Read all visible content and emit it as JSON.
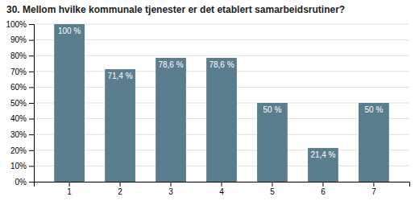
{
  "chart_data": {
    "type": "bar",
    "title": "30. Mellom hvilke kommunale tjenester er det etablert samarbeidsrutiner?",
    "categories": [
      "1",
      "2",
      "3",
      "4",
      "5",
      "6",
      "7"
    ],
    "values": [
      100.0,
      71.4,
      78.6,
      78.6,
      50.0,
      21.4,
      50.0
    ],
    "value_labels": [
      "100 %",
      "71,4 %",
      "78,6 %",
      "78,6 %",
      "50 %",
      "21,4 %",
      "50 %"
    ],
    "data_labels": true,
    "color": "#5a7e8e",
    "ylim": [
      0,
      100
    ],
    "yticks": [
      {
        "value": 0,
        "label": "0%"
      },
      {
        "value": 10,
        "label": "10%"
      },
      {
        "value": 20,
        "label": "20%"
      },
      {
        "value": 30,
        "label": "30%"
      },
      {
        "value": 40,
        "label": "40%"
      },
      {
        "value": 50,
        "label": "50%"
      },
      {
        "value": 60,
        "label": "60%"
      },
      {
        "value": 70,
        "label": "70%"
      },
      {
        "value": 80,
        "label": "80%"
      },
      {
        "value": 90,
        "label": "90%"
      },
      {
        "value": 100,
        "label": "100%"
      }
    ],
    "grid": true
  }
}
